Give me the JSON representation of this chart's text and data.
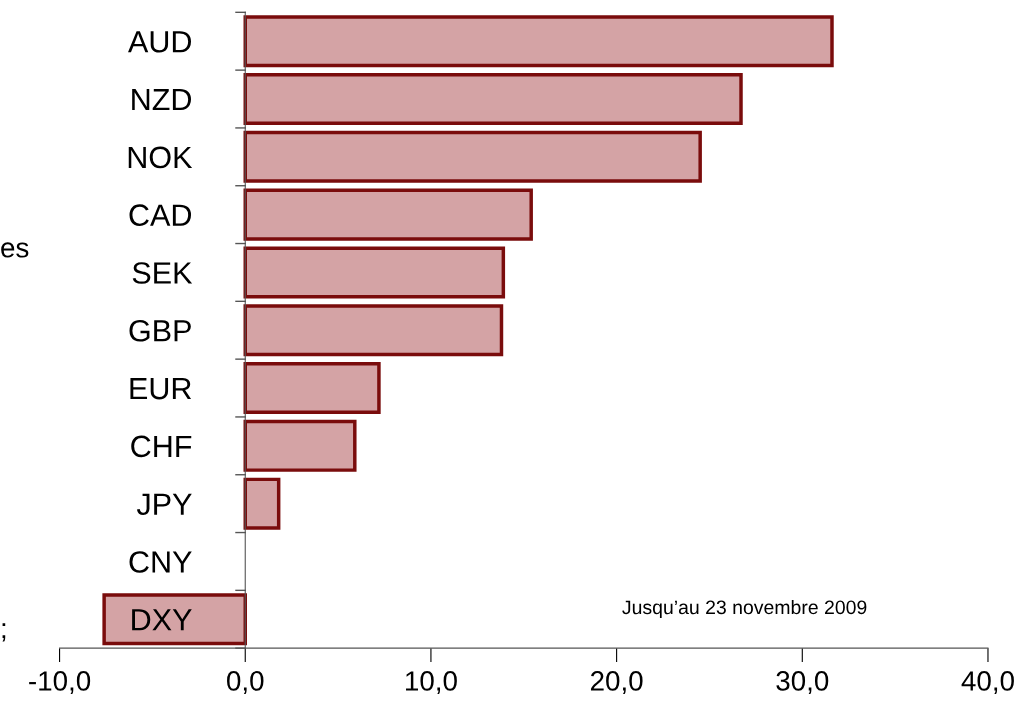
{
  "chart_data": {
    "type": "bar",
    "orientation": "horizontal",
    "categories": [
      "AUD",
      "NZD",
      "NOK",
      "CAD",
      "SEK",
      "GBP",
      "EUR",
      "CHF",
      "JPY",
      "CNY",
      "DXY"
    ],
    "values": [
      31.6,
      26.7,
      24.5,
      15.4,
      13.9,
      13.8,
      7.2,
      5.9,
      1.8,
      0,
      -7.6
    ],
    "color": "#d4a3a5",
    "xlim": [
      -10,
      40
    ],
    "xticks": [
      {
        "value": -10,
        "label": "-10,0"
      },
      {
        "value": 0,
        "label": "0,0"
      },
      {
        "value": 10,
        "label": "10,0"
      },
      {
        "value": 20,
        "label": "20,0"
      },
      {
        "value": 30,
        "label": "30,0"
      },
      {
        "value": 40,
        "label": "40,0"
      }
    ],
    "legend": false,
    "annotations": [
      "Jusqu’au 23 novembre 2009",
      "es",
      ";"
    ]
  }
}
